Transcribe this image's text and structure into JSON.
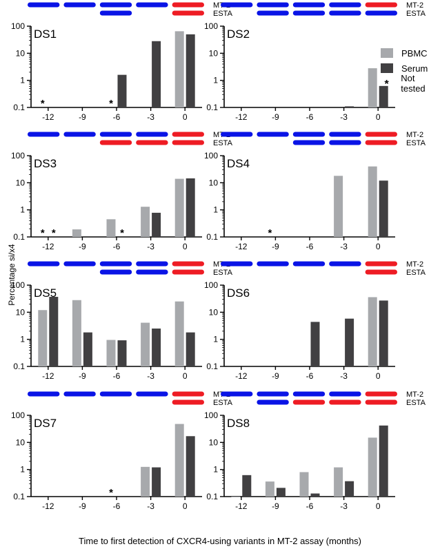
{
  "colors": {
    "pbmc": "#a7a9ac",
    "serum": "#414042",
    "blue": "#0a14e6",
    "red": "#ee1c24"
  },
  "xlabel": "Time to first detection of CXCR4-using variants in MT-2 assay (months)",
  "ylabel": "Percentage si/x4",
  "legend": {
    "pbmc": "PBMC",
    "serum": "Serum",
    "not_tested_symbol": "*",
    "not_tested": "Not tested"
  },
  "track_labels": [
    "MT-2",
    "ESTA"
  ],
  "chart_data": [
    {
      "type": "bar",
      "title": "DS1",
      "categories": [
        "-12",
        "-9",
        "-6",
        "-3",
        "0"
      ],
      "yscale": "log",
      "ylim": [
        0.1,
        100
      ],
      "yticks": [
        "0.1",
        "1",
        "10",
        "100"
      ],
      "series": [
        {
          "name": "PBMC",
          "values": [
            null,
            null,
            null,
            null,
            65
          ]
        },
        {
          "name": "Serum",
          "values": [
            null,
            null,
            1.6,
            28,
            50
          ]
        }
      ],
      "not_tested": [
        {
          "category": "-12",
          "series": "PBMC"
        },
        {
          "category": "-6",
          "series": "PBMC"
        }
      ],
      "tracks": {
        "MT-2": [
          "blue",
          "blue",
          "blue",
          "blue",
          "red"
        ],
        "ESTA": [
          null,
          null,
          "blue",
          null,
          "red"
        ]
      }
    },
    {
      "type": "bar",
      "title": "DS2",
      "categories": [
        "-12",
        "-9",
        "-6",
        "-3",
        "0"
      ],
      "yscale": "log",
      "ylim": [
        0.1,
        100
      ],
      "yticks": [
        "0.1",
        "1",
        "10",
        "100"
      ],
      "series": [
        {
          "name": "PBMC",
          "values": [
            null,
            null,
            null,
            null,
            2.8
          ]
        },
        {
          "name": "Serum",
          "values": [
            null,
            null,
            null,
            0.11,
            0.62
          ]
        }
      ],
      "not_tested": [],
      "tracks": {
        "MT-2": [
          "blue",
          "blue",
          "blue",
          "blue",
          "red"
        ],
        "ESTA": [
          null,
          "blue",
          "blue",
          "blue",
          "blue"
        ]
      }
    },
    {
      "type": "bar",
      "title": "DS3",
      "categories": [
        "-12",
        "-9",
        "-6",
        "-3",
        "0"
      ],
      "yscale": "log",
      "ylim": [
        0.1,
        100
      ],
      "yticks": [
        "0.1",
        "1",
        "10",
        "100"
      ],
      "series": [
        {
          "name": "PBMC",
          "values": [
            null,
            0.19,
            0.45,
            1.3,
            14
          ]
        },
        {
          "name": "Serum",
          "values": [
            null,
            null,
            null,
            0.78,
            14.5
          ]
        }
      ],
      "not_tested": [
        {
          "category": "-12",
          "series": "PBMC"
        },
        {
          "category": "-12",
          "series": "Serum"
        },
        {
          "category": "-6",
          "series": "Serum"
        }
      ],
      "tracks": {
        "MT-2": [
          "blue",
          "blue",
          "blue",
          "blue",
          "red"
        ],
        "ESTA": [
          null,
          null,
          "red",
          "red",
          "red"
        ]
      }
    },
    {
      "type": "bar",
      "title": "DS4",
      "categories": [
        "-12",
        "-9",
        "-6",
        "-3",
        "0"
      ],
      "yscale": "log",
      "ylim": [
        0.1,
        100
      ],
      "yticks": [
        "0.1",
        "1",
        "10",
        "100"
      ],
      "series": [
        {
          "name": "PBMC",
          "values": [
            null,
            null,
            null,
            18,
            40
          ]
        },
        {
          "name": "Serum",
          "values": [
            null,
            null,
            null,
            null,
            12
          ]
        }
      ],
      "not_tested": [
        {
          "category": "-9",
          "series": "PBMC"
        }
      ],
      "tracks": {
        "MT-2": [
          "blue",
          "blue",
          "blue",
          "blue",
          "red"
        ],
        "ESTA": [
          null,
          null,
          "blue",
          "blue",
          "red"
        ]
      }
    },
    {
      "type": "bar",
      "title": "DS5",
      "categories": [
        "-12",
        "-9",
        "-6",
        "-3",
        "0"
      ],
      "yscale": "log",
      "ylim": [
        0.1,
        100
      ],
      "yticks": [
        "0.1",
        "1",
        "10",
        "100"
      ],
      "series": [
        {
          "name": "PBMC",
          "values": [
            12,
            28,
            0.95,
            4.1,
            25
          ]
        },
        {
          "name": "Serum",
          "values": [
            37,
            1.8,
            0.92,
            2.5,
            1.8
          ]
        }
      ],
      "not_tested": [],
      "tracks": {
        "MT-2": [
          "blue",
          "blue",
          "blue",
          "blue",
          "red"
        ],
        "ESTA": [
          null,
          null,
          "blue",
          "blue",
          "red"
        ]
      }
    },
    {
      "type": "bar",
      "title": "DS6",
      "categories": [
        "-12",
        "-9",
        "-6",
        "-3",
        "0"
      ],
      "yscale": "log",
      "ylim": [
        0.1,
        100
      ],
      "yticks": [
        "0.1",
        "1",
        "10",
        "100"
      ],
      "series": [
        {
          "name": "PBMC",
          "values": [
            null,
            null,
            null,
            null,
            36
          ]
        },
        {
          "name": "Serum",
          "values": [
            null,
            null,
            4.4,
            5.8,
            27
          ]
        }
      ],
      "not_tested": [],
      "tracks": {
        "MT-2": [
          "blue",
          "blue",
          "blue",
          "blue",
          "red"
        ],
        "ESTA": [
          null,
          null,
          null,
          null,
          "red"
        ]
      }
    },
    {
      "type": "bar",
      "title": "DS7",
      "categories": [
        "-12",
        "-9",
        "-6",
        "-3",
        "0"
      ],
      "yscale": "log",
      "ylim": [
        0.1,
        100
      ],
      "yticks": [
        "0.1",
        "1",
        "10",
        "100"
      ],
      "series": [
        {
          "name": "PBMC",
          "values": [
            null,
            null,
            null,
            1.25,
            48
          ]
        },
        {
          "name": "Serum",
          "values": [
            null,
            null,
            null,
            1.2,
            17
          ]
        }
      ],
      "not_tested": [
        {
          "category": "-6",
          "series": "PBMC"
        }
      ],
      "tracks": {
        "MT-2": [
          "blue",
          "blue",
          "blue",
          "blue",
          "red"
        ],
        "ESTA": [
          null,
          null,
          null,
          null,
          "red"
        ]
      }
    },
    {
      "type": "bar",
      "title": "DS8",
      "categories": [
        "-12",
        "-9",
        "-6",
        "-3",
        "0"
      ],
      "yscale": "log",
      "ylim": [
        0.1,
        100
      ],
      "yticks": [
        "0.1",
        "1",
        "10",
        "100"
      ],
      "series": [
        {
          "name": "PBMC",
          "values": [
            0.1,
            0.36,
            0.8,
            1.2,
            15
          ]
        },
        {
          "name": "Serum",
          "values": [
            0.62,
            0.21,
            0.13,
            0.37,
            42
          ]
        }
      ],
      "not_tested": [],
      "tracks": {
        "MT-2": [
          "blue",
          "blue",
          "blue",
          "blue",
          "red"
        ],
        "ESTA": [
          null,
          "blue",
          "red",
          "red",
          "red"
        ]
      }
    }
  ]
}
